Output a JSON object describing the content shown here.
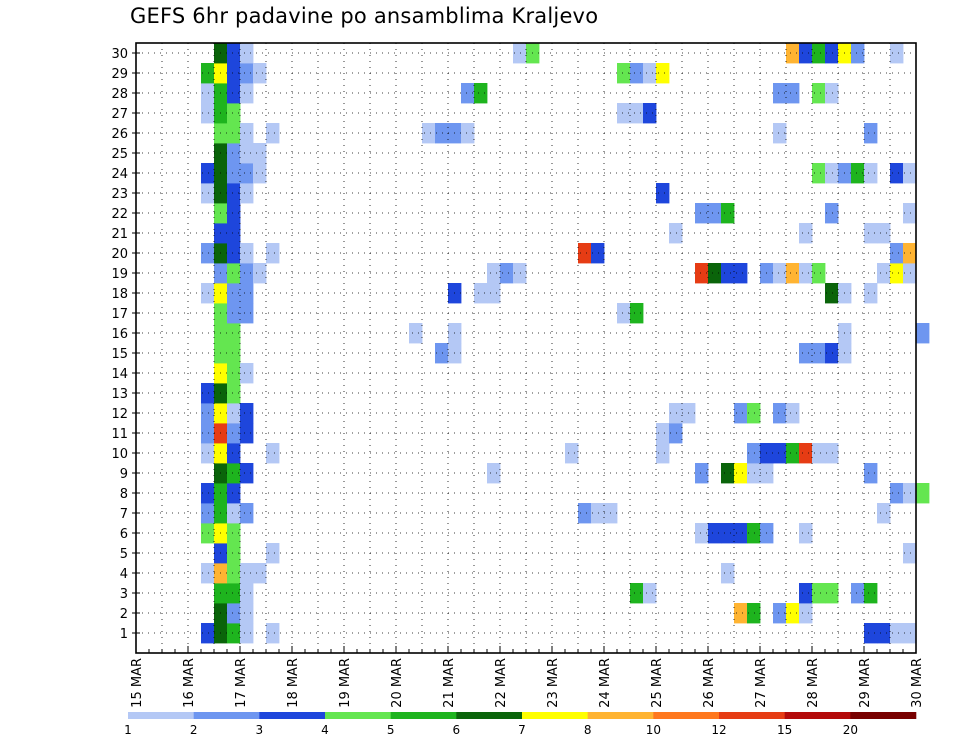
{
  "title": "GEFS 6hr padavine po ansamblima Kraljevo",
  "colors": {
    "1": "#b4c8f5",
    "2": "#6e96f0",
    "3": "#1e46dc",
    "4": "#64e650",
    "5": "#1eb41e",
    "6": "#0a640a",
    "7": "#ffff00",
    "8": "#ffb432",
    "10": "#ff781e",
    "12": "#e63c14",
    "15": "#b40a0a",
    "20": "#780000"
  },
  "chart_data": {
    "type": "heatmap",
    "title": "GEFS 6hr padavine po ansamblima Kraljevo",
    "x_tick_labels": [
      "15 MAR",
      "16 MAR",
      "17 MAR",
      "18 MAR",
      "19 MAR",
      "20 MAR",
      "21 MAR",
      "22 MAR",
      "23 MAR",
      "24 MAR",
      "25 MAR",
      "26 MAR",
      "27 MAR",
      "28 MAR",
      "29 MAR",
      "30 MAR"
    ],
    "y_tick_labels": [
      "1",
      "2",
      "3",
      "4",
      "5",
      "6",
      "7",
      "8",
      "9",
      "10",
      "11",
      "12",
      "13",
      "14",
      "15",
      "16",
      "17",
      "18",
      "19",
      "20",
      "21",
      "22",
      "23",
      "24",
      "25",
      "26",
      "27",
      "28",
      "29",
      "30"
    ],
    "x_range_days_after_15_MAR": [
      0,
      15
    ],
    "time_step": "6hr",
    "legend_levels": [
      "1",
      "2",
      "3",
      "4",
      "5",
      "6",
      "7",
      "8",
      "10",
      "12",
      "15",
      "20"
    ],
    "cells": [
      [
        1,
        1.5,
        3
      ],
      [
        1,
        1.75,
        6
      ],
      [
        1,
        2,
        5
      ],
      [
        1,
        2.25,
        1
      ],
      [
        1,
        2.75,
        1
      ],
      [
        1,
        14.25,
        3
      ],
      [
        1,
        14.5,
        3
      ],
      [
        1,
        14.75,
        1
      ],
      [
        1,
        15,
        1
      ],
      [
        2,
        1.75,
        6
      ],
      [
        2,
        2,
        2
      ],
      [
        2,
        2.25,
        1
      ],
      [
        2,
        11.75,
        8
      ],
      [
        2,
        12,
        5
      ],
      [
        2,
        12.5,
        2
      ],
      [
        2,
        12.75,
        7
      ],
      [
        2,
        13,
        1
      ],
      [
        3,
        1.75,
        5
      ],
      [
        3,
        2,
        5
      ],
      [
        3,
        2.25,
        1
      ],
      [
        3,
        9.75,
        5
      ],
      [
        3,
        10,
        1
      ],
      [
        3,
        13,
        3
      ],
      [
        3,
        13.25,
        4
      ],
      [
        3,
        13.5,
        4
      ],
      [
        3,
        14,
        2
      ],
      [
        3,
        14.25,
        5
      ],
      [
        4,
        1.5,
        1
      ],
      [
        4,
        1.75,
        8
      ],
      [
        4,
        2,
        4
      ],
      [
        4,
        2.25,
        1
      ],
      [
        4,
        2.5,
        1
      ],
      [
        4,
        11.5,
        1
      ],
      [
        5,
        1.75,
        3
      ],
      [
        5,
        2,
        4
      ],
      [
        5,
        2.75,
        1
      ],
      [
        5,
        15,
        1
      ],
      [
        6,
        1.5,
        4
      ],
      [
        6,
        1.75,
        7
      ],
      [
        6,
        2,
        4
      ],
      [
        6,
        11,
        1
      ],
      [
        6,
        11.25,
        3
      ],
      [
        6,
        11.5,
        3
      ],
      [
        6,
        11.75,
        3
      ],
      [
        6,
        12,
        5
      ],
      [
        6,
        12.25,
        2
      ],
      [
        6,
        13,
        1
      ],
      [
        7,
        1.5,
        2
      ],
      [
        7,
        1.75,
        5
      ],
      [
        7,
        2,
        1
      ],
      [
        7,
        2.25,
        2
      ],
      [
        7,
        8.75,
        2
      ],
      [
        7,
        9,
        1
      ],
      [
        7,
        9.25,
        1
      ],
      [
        7,
        14.5,
        1
      ],
      [
        8,
        1.5,
        3
      ],
      [
        8,
        1.75,
        5
      ],
      [
        8,
        2,
        3
      ],
      [
        8,
        14.75,
        2
      ],
      [
        8,
        15,
        1
      ],
      [
        8,
        15.25,
        4
      ],
      [
        9,
        1.75,
        6
      ],
      [
        9,
        2,
        5
      ],
      [
        9,
        2.25,
        3
      ],
      [
        9,
        7,
        1
      ],
      [
        9,
        11,
        2
      ],
      [
        9,
        11.5,
        6
      ],
      [
        9,
        11.75,
        7
      ],
      [
        9,
        12,
        1
      ],
      [
        9,
        12.25,
        1
      ],
      [
        9,
        14.25,
        2
      ],
      [
        10,
        1.5,
        1
      ],
      [
        10,
        1.75,
        7
      ],
      [
        10,
        2,
        3
      ],
      [
        10,
        2.75,
        1
      ],
      [
        10,
        8.5,
        1
      ],
      [
        10,
        10.25,
        1
      ],
      [
        10,
        12,
        2
      ],
      [
        10,
        12.25,
        3
      ],
      [
        10,
        12.5,
        3
      ],
      [
        10,
        12.75,
        5
      ],
      [
        10,
        13,
        12
      ],
      [
        10,
        13.25,
        1
      ],
      [
        10,
        13.5,
        1
      ],
      [
        11,
        1.5,
        2
      ],
      [
        11,
        1.75,
        12
      ],
      [
        11,
        2,
        2
      ],
      [
        11,
        2.25,
        3
      ],
      [
        11,
        10.25,
        1
      ],
      [
        11,
        10.5,
        2
      ],
      [
        12,
        1.5,
        2
      ],
      [
        12,
        1.75,
        7
      ],
      [
        12,
        2,
        1
      ],
      [
        12,
        2.25,
        3
      ],
      [
        12,
        10.5,
        1
      ],
      [
        12,
        10.75,
        1
      ],
      [
        12,
        11.75,
        2
      ],
      [
        12,
        12,
        4
      ],
      [
        12,
        12.5,
        2
      ],
      [
        12,
        12.75,
        1
      ],
      [
        13,
        1.5,
        3
      ],
      [
        13,
        1.75,
        6
      ],
      [
        13,
        2,
        4
      ],
      [
        14,
        1.75,
        7
      ],
      [
        14,
        2,
        4
      ],
      [
        14,
        2.25,
        1
      ],
      [
        15,
        1.75,
        4
      ],
      [
        15,
        2,
        4
      ],
      [
        15,
        6,
        2
      ],
      [
        15,
        6.25,
        1
      ],
      [
        15,
        13,
        2
      ],
      [
        15,
        13.25,
        2
      ],
      [
        15,
        13.5,
        3
      ],
      [
        15,
        13.75,
        1
      ],
      [
        16,
        1.75,
        4
      ],
      [
        16,
        2,
        4
      ],
      [
        16,
        5.5,
        1
      ],
      [
        16,
        6.25,
        1
      ],
      [
        16,
        13.75,
        1
      ],
      [
        16,
        15.25,
        2
      ],
      [
        17,
        1.75,
        4
      ],
      [
        17,
        2,
        2
      ],
      [
        17,
        2.25,
        2
      ],
      [
        17,
        9.5,
        1
      ],
      [
        17,
        9.75,
        5
      ],
      [
        18,
        1.5,
        1
      ],
      [
        18,
        1.75,
        7
      ],
      [
        18,
        2,
        2
      ],
      [
        18,
        2.25,
        2
      ],
      [
        18,
        6.25,
        3
      ],
      [
        18,
        6.75,
        1
      ],
      [
        18,
        7,
        1
      ],
      [
        18,
        13.5,
        6
      ],
      [
        18,
        13.75,
        1
      ],
      [
        18,
        14.25,
        1
      ],
      [
        19,
        1.75,
        2
      ],
      [
        19,
        2,
        4
      ],
      [
        19,
        2.25,
        2
      ],
      [
        19,
        2.5,
        1
      ],
      [
        19,
        7,
        1
      ],
      [
        19,
        7.25,
        2
      ],
      [
        19,
        7.5,
        1
      ],
      [
        19,
        11,
        12
      ],
      [
        19,
        11.25,
        6
      ],
      [
        19,
        11.5,
        3
      ],
      [
        19,
        11.75,
        3
      ],
      [
        19,
        12.25,
        2
      ],
      [
        19,
        12.5,
        1
      ],
      [
        19,
        12.75,
        8
      ],
      [
        19,
        13,
        1
      ],
      [
        19,
        13.25,
        4
      ],
      [
        19,
        14.5,
        1
      ],
      [
        19,
        14.75,
        7
      ],
      [
        19,
        15,
        1
      ],
      [
        20,
        1.5,
        2
      ],
      [
        20,
        1.75,
        6
      ],
      [
        20,
        2,
        3
      ],
      [
        20,
        2.25,
        1
      ],
      [
        20,
        2.75,
        1
      ],
      [
        20,
        8.75,
        12
      ],
      [
        20,
        9,
        3
      ],
      [
        20,
        14.75,
        2
      ],
      [
        20,
        15,
        8
      ],
      [
        21,
        1.75,
        3
      ],
      [
        21,
        2,
        3
      ],
      [
        21,
        10.5,
        1
      ],
      [
        21,
        13,
        1
      ],
      [
        21,
        14.25,
        1
      ],
      [
        21,
        14.5,
        1
      ],
      [
        22,
        1.75,
        4
      ],
      [
        22,
        2,
        3
      ],
      [
        22,
        11,
        2
      ],
      [
        22,
        11.25,
        2
      ],
      [
        22,
        11.5,
        5
      ],
      [
        22,
        13.5,
        2
      ],
      [
        22,
        15,
        1
      ],
      [
        23,
        1.5,
        1
      ],
      [
        23,
        1.75,
        6
      ],
      [
        23,
        2,
        3
      ],
      [
        23,
        2.25,
        1
      ],
      [
        23,
        10.25,
        3
      ],
      [
        24,
        1.5,
        3
      ],
      [
        24,
        1.75,
        6
      ],
      [
        24,
        2,
        2
      ],
      [
        24,
        2.25,
        2
      ],
      [
        24,
        2.5,
        1
      ],
      [
        24,
        13.25,
        4
      ],
      [
        24,
        13.5,
        1
      ],
      [
        24,
        13.75,
        2
      ],
      [
        24,
        14,
        5
      ],
      [
        24,
        14.25,
        1
      ],
      [
        24,
        14.75,
        3
      ],
      [
        24,
        15,
        1
      ],
      [
        25,
        1.75,
        6
      ],
      [
        25,
        2,
        2
      ],
      [
        25,
        2.25,
        1
      ],
      [
        25,
        2.5,
        1
      ],
      [
        26,
        1.75,
        4
      ],
      [
        26,
        2,
        4
      ],
      [
        26,
        2.25,
        1
      ],
      [
        26,
        2.75,
        1
      ],
      [
        26,
        5.75,
        1
      ],
      [
        26,
        6,
        2
      ],
      [
        26,
        6.25,
        2
      ],
      [
        26,
        6.5,
        1
      ],
      [
        26,
        12.5,
        1
      ],
      [
        26,
        14.25,
        2
      ],
      [
        27,
        1.5,
        1
      ],
      [
        27,
        1.75,
        5
      ],
      [
        27,
        2,
        4
      ],
      [
        27,
        9.5,
        1
      ],
      [
        27,
        9.75,
        1
      ],
      [
        27,
        10,
        3
      ],
      [
        28,
        1.5,
        1
      ],
      [
        28,
        1.75,
        5
      ],
      [
        28,
        2,
        3
      ],
      [
        28,
        2.25,
        1
      ],
      [
        28,
        6.5,
        2
      ],
      [
        28,
        6.75,
        5
      ],
      [
        28,
        12.5,
        2
      ],
      [
        28,
        12.75,
        2
      ],
      [
        28,
        13.25,
        4
      ],
      [
        28,
        13.5,
        1
      ],
      [
        29,
        1.5,
        5
      ],
      [
        29,
        1.75,
        7
      ],
      [
        29,
        2,
        3
      ],
      [
        29,
        2.25,
        2
      ],
      [
        29,
        2.5,
        1
      ],
      [
        29,
        9.5,
        4
      ],
      [
        29,
        9.75,
        2
      ],
      [
        29,
        10,
        1
      ],
      [
        29,
        10.25,
        7
      ],
      [
        30,
        1.75,
        6
      ],
      [
        30,
        2,
        3
      ],
      [
        30,
        2.25,
        1
      ],
      [
        30,
        7.5,
        1
      ],
      [
        30,
        7.75,
        4
      ],
      [
        30,
        12.75,
        8
      ],
      [
        30,
        13,
        3
      ],
      [
        30,
        13.25,
        5
      ],
      [
        30,
        13.5,
        3
      ],
      [
        30,
        13.75,
        7
      ],
      [
        30,
        14,
        2
      ],
      [
        30,
        14.75,
        1
      ]
    ]
  }
}
